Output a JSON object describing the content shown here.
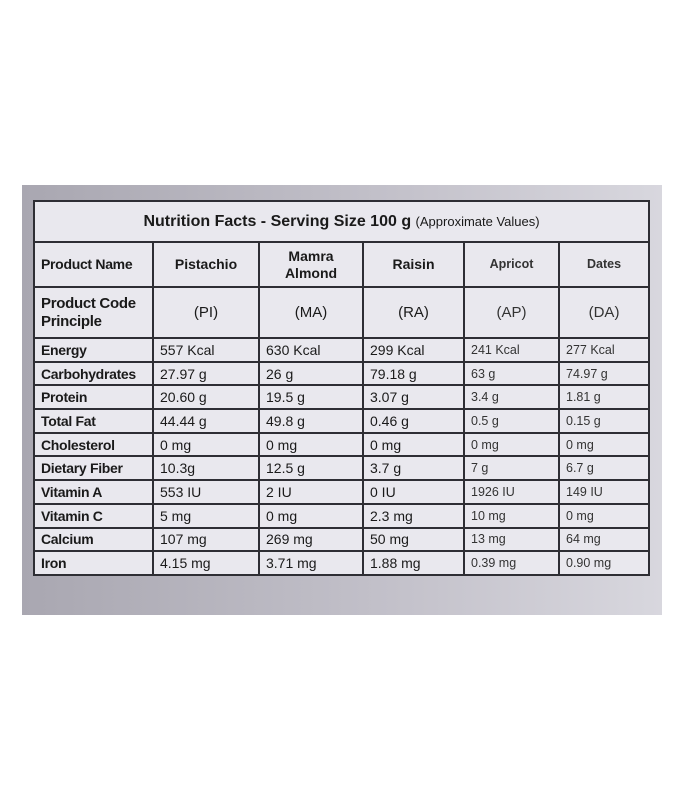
{
  "table": {
    "title": "Nutrition Facts  - Serving Size 100 g",
    "subtitle": "(Approximate Values)",
    "header": [
      "Product Name",
      "Pistachio",
      "Mamra Almond",
      "Raisin",
      "Apricot",
      "Dates"
    ],
    "codes": [
      "Product Code Principle",
      "(PI)",
      "(MA)",
      "(RA)",
      "(AP)",
      "(DA)"
    ],
    "rows": [
      [
        "Energy",
        "557 Kcal",
        "630 Kcal",
        "299 Kcal",
        "241 Kcal",
        "277 Kcal"
      ],
      [
        "Carbohydrates",
        "27.97 g",
        "26 g",
        "79.18 g",
        "63 g",
        "74.97 g"
      ],
      [
        "Protein",
        "20.60 g",
        "19.5 g",
        "3.07 g",
        "3.4 g",
        "1.81 g"
      ],
      [
        "Total Fat",
        "44.44 g",
        "49.8 g",
        "0.46 g",
        "0.5 g",
        "0.15 g"
      ],
      [
        "Cholesterol",
        "0 mg",
        "0 mg",
        "0 mg",
        "0 mg",
        "0 mg"
      ],
      [
        "Dietary Fiber",
        "10.3g",
        "12.5 g",
        "3.7 g",
        "7 g",
        "6.7 g"
      ],
      [
        "Vitamin A",
        "553 IU",
        "2 IU",
        "0 IU",
        "1926 IU",
        "149 IU"
      ],
      [
        "Vitamin C",
        "5 mg",
        "0 mg",
        "2.3 mg",
        "10 mg",
        "0 mg"
      ],
      [
        "Calcium",
        "107 mg",
        "269 mg",
        "50 mg",
        "13 mg",
        "64 mg"
      ],
      [
        "Iron",
        "4.15 mg",
        "3.71 mg",
        "1.88 mg",
        "0.39 mg",
        "0.90 mg"
      ]
    ]
  }
}
